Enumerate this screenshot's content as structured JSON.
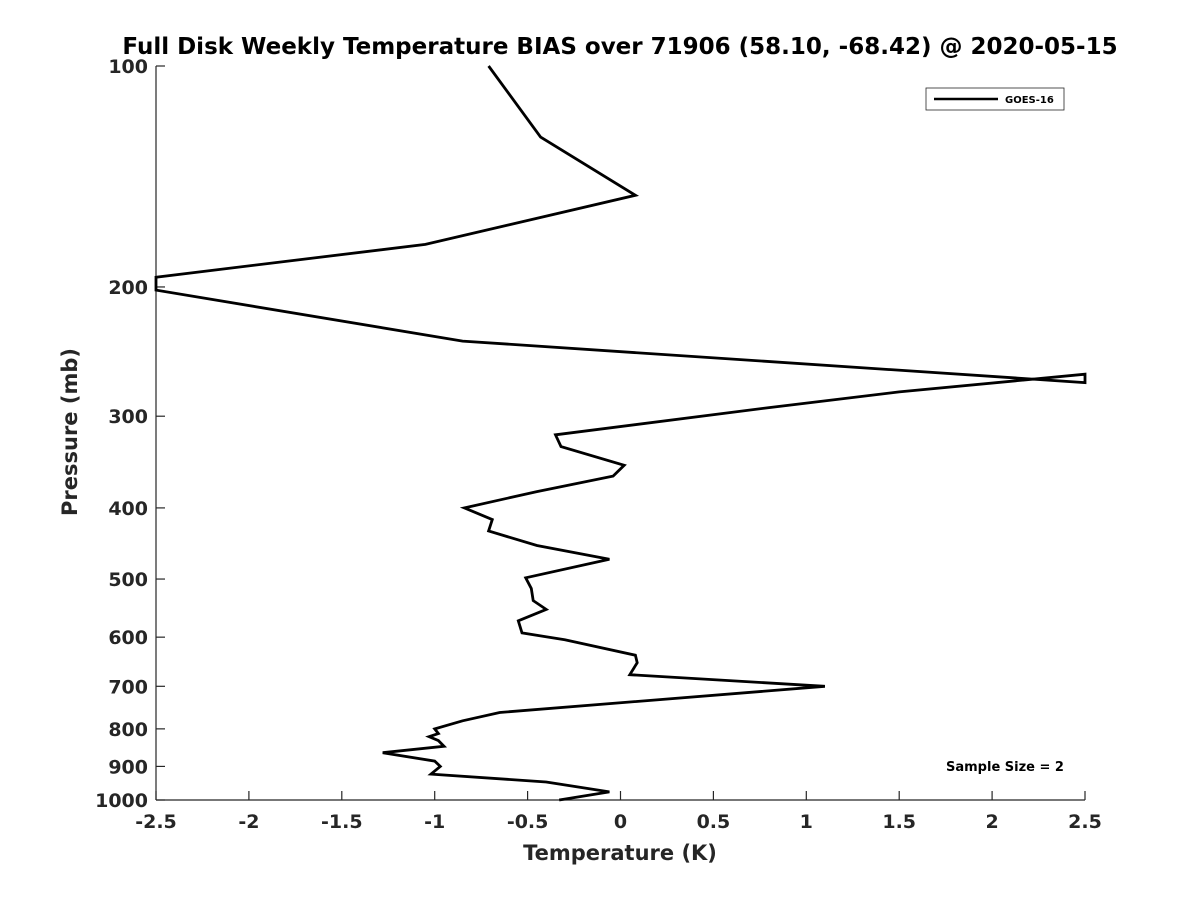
{
  "chart_data": {
    "type": "line",
    "title": "Full Disk Weekly Temperature BIAS over 71906 (58.10, -68.42) @ 2020-05-15",
    "xlabel": "Temperature (K)",
    "ylabel": "Pressure (mb)",
    "xlim": [
      -2.5,
      2.5
    ],
    "ylim": [
      100,
      1000
    ],
    "y_scale": "log",
    "y_reversed": true,
    "grid": false,
    "legend_position": "top-right",
    "x_ticks": [
      -2.5,
      -2,
      -1.5,
      -1,
      -0.5,
      0,
      0.5,
      1,
      1.5,
      2,
      2.5
    ],
    "x_tick_labels": [
      "-2.5",
      "-2",
      "-1.5",
      "-1",
      "-0.5",
      "0",
      "0.5",
      "1",
      "1.5",
      "2",
      "2.5"
    ],
    "y_ticks": [
      100,
      200,
      300,
      400,
      500,
      600,
      700,
      800,
      900,
      1000
    ],
    "y_tick_labels": [
      "100",
      "200",
      "300",
      "400",
      "500",
      "600",
      "700",
      "800",
      "900",
      "1000"
    ],
    "series": [
      {
        "name": "GOES-16",
        "color": "#000000",
        "points": [
          [
            -0.71,
            100
          ],
          [
            -0.43,
            125
          ],
          [
            0.08,
            150
          ],
          [
            -1.05,
            175
          ],
          [
            -2.5,
            194
          ],
          [
            -2.5,
            202
          ],
          [
            -0.85,
            237
          ],
          [
            2.5,
            270
          ],
          [
            2.5,
            263
          ],
          [
            1.5,
            278
          ],
          [
            0.8,
            292
          ],
          [
            -0.35,
            318
          ],
          [
            -0.32,
            330
          ],
          [
            0.02,
            350
          ],
          [
            -0.04,
            362
          ],
          [
            -0.45,
            380
          ],
          [
            -0.84,
            400
          ],
          [
            -0.69,
            415
          ],
          [
            -0.71,
            430
          ],
          [
            -0.45,
            450
          ],
          [
            -0.06,
            470
          ],
          [
            -0.51,
            498
          ],
          [
            -0.48,
            515
          ],
          [
            -0.47,
            535
          ],
          [
            -0.4,
            550
          ],
          [
            -0.55,
            570
          ],
          [
            -0.53,
            592
          ],
          [
            -0.3,
            605
          ],
          [
            0.08,
            635
          ],
          [
            0.09,
            650
          ],
          [
            0.05,
            675
          ],
          [
            1.1,
            700
          ],
          [
            -0.65,
            760
          ],
          [
            -0.85,
            780
          ],
          [
            -1.0,
            800
          ],
          [
            -0.98,
            812
          ],
          [
            -1.03,
            820
          ],
          [
            -0.98,
            830
          ],
          [
            -0.95,
            845
          ],
          [
            -1.28,
            862
          ],
          [
            -1.0,
            885
          ],
          [
            -0.97,
            900
          ],
          [
            -1.02,
            922
          ],
          [
            -0.4,
            945
          ],
          [
            -0.06,
            975
          ],
          [
            -0.33,
            1000
          ]
        ]
      }
    ],
    "annotations": [
      "Sample Size = 2"
    ]
  }
}
